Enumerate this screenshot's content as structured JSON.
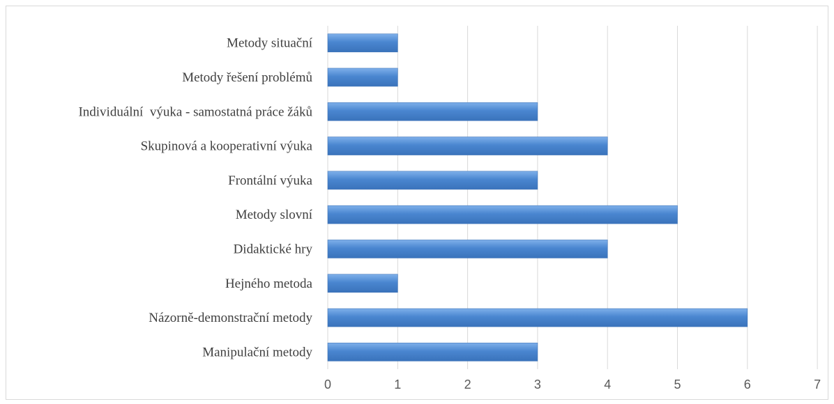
{
  "chart_data": {
    "type": "bar",
    "orientation": "horizontal",
    "categories": [
      "Manipulační metody",
      "Názorně-demonstrační metody",
      "Hejného metoda",
      "Didaktické hry",
      "Metody slovní",
      "Frontální výuka",
      "Skupinová a kooperativní výuka",
      "Individuální  výuka - samostatná práce žáků",
      "Metody řešení problémů",
      "Metody situační"
    ],
    "values": [
      3,
      6,
      1,
      4,
      5,
      3,
      4,
      3,
      1,
      1
    ],
    "xlim": [
      0,
      7
    ],
    "x_ticks": [
      "0",
      "1",
      "2",
      "3",
      "4",
      "5",
      "6",
      "7"
    ],
    "title": "",
    "xlabel": "",
    "ylabel": "",
    "grid": true,
    "legend": "none",
    "bar_color": "#4a86d0"
  }
}
